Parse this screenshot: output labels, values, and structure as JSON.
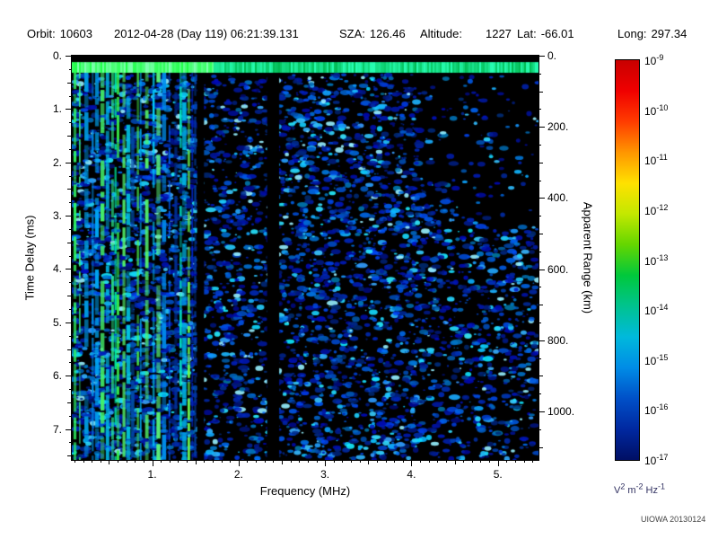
{
  "header": {
    "fields": [
      {
        "label": "Orbit:",
        "value": "10603"
      },
      {
        "label": "",
        "value": "2012-04-28 (Day 119) 06:21:39.131"
      },
      {
        "label": "SZA:",
        "value": "126.46"
      },
      {
        "label": "Altitude:",
        "value": "1227"
      },
      {
        "label": "Lat:",
        "value": "-66.01"
      },
      {
        "label": "Long:",
        "value": "297.34"
      }
    ]
  },
  "chart_data": {
    "type": "heatmap",
    "description": "Radar sounder ionogram spectrogram: spectral density vs frequency (x) and time delay (y). Dense bright green/cyan vertical interference stripes from 0.1 to ~1.5 MHz spanning all delays; bright green horizontal transmit band near zero delay across all frequencies; faint scattered blue noise blobs from ~1.6 to 5.4 MHz, sparser in upper-right corner; black instrument gap band near 2.4 MHz; black background elsewhere.",
    "xlabel": "Frequency (MHz)",
    "ylabel_left": "Time Delay (ms)",
    "ylabel_right": "Apparent Range (km)",
    "xlim": [
      0.07,
      5.47
    ],
    "ylim_ms": [
      0,
      7.58
    ],
    "x_major_ticks": [
      {
        "v": 1.0,
        "label": "1."
      },
      {
        "v": 2.0,
        "label": "2."
      },
      {
        "v": 3.0,
        "label": "3."
      },
      {
        "v": 4.0,
        "label": "4."
      },
      {
        "v": 5.0,
        "label": "5."
      }
    ],
    "x_minor_step_mhz": 0.1,
    "y_left_ticks": [
      {
        "v": 0,
        "label": "0."
      },
      {
        "v": 1,
        "label": "1."
      },
      {
        "v": 2,
        "label": "2."
      },
      {
        "v": 3,
        "label": "3."
      },
      {
        "v": 4,
        "label": "4."
      },
      {
        "v": 5,
        "label": "5."
      },
      {
        "v": 6,
        "label": "6."
      },
      {
        "v": 7,
        "label": "7."
      }
    ],
    "y_left_minor_step_ms": 0.25,
    "y_right_ticks": [
      {
        "km": 0,
        "label": "0."
      },
      {
        "km": 200,
        "label": "200."
      },
      {
        "km": 400,
        "label": "400."
      },
      {
        "km": 600,
        "label": "600."
      },
      {
        "km": 800,
        "label": "800."
      },
      {
        "km": 1000,
        "label": "1000."
      }
    ],
    "y_right_minor_step_km": 50,
    "km_per_ms": 149.896,
    "grid": false,
    "colorbar": {
      "ticks": [
        {
          "base": "10",
          "exp": "-9"
        },
        {
          "base": "10",
          "exp": "-10"
        },
        {
          "base": "10",
          "exp": "-11"
        },
        {
          "base": "10",
          "exp": "-12"
        },
        {
          "base": "10",
          "exp": "-13"
        },
        {
          "base": "10",
          "exp": "-14"
        },
        {
          "base": "10",
          "exp": "-15"
        },
        {
          "base": "10",
          "exp": "-16"
        },
        {
          "base": "10",
          "exp": "-17"
        }
      ],
      "unit_parts": [
        {
          "base": "V",
          "exp": "2"
        },
        {
          "base": "m",
          "exp": "-2"
        },
        {
          "base": "Hz",
          "exp": "-1"
        }
      ],
      "colors_top_to_bottom": [
        "#c80000",
        "#f00000",
        "#ff3c00",
        "#ff9600",
        "#ffe100",
        "#c3e800",
        "#64d600",
        "#00c83c",
        "#00c38f",
        "#00b9dc",
        "#008ce6",
        "#0050c8",
        "#0028a0",
        "#000f64"
      ]
    },
    "features": {
      "transmit_band_ms": [
        0.12,
        0.32
      ],
      "stripe_region_mhz": [
        0.09,
        1.52
      ],
      "secondary_gap_mhz": [
        1.52,
        1.6
      ],
      "interference_gap_mhz": [
        2.33,
        2.47
      ],
      "noise_region_mhz": [
        1.6,
        5.47
      ],
      "sparse_upper_right_from_mhz": 4.1
    },
    "seed": 1260312
  },
  "footer": {
    "credit": "UIOWA 20130124"
  }
}
